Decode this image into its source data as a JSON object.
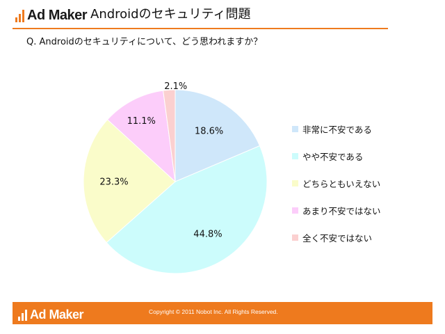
{
  "header": {
    "logo_text": "Ad Maker",
    "title": "Androidのセキュリティ問題"
  },
  "question": "Q. Androidのセキュリティについて、どう思われますか？",
  "colors": {
    "accent": "#ee7a1e",
    "logo_bar": "#ee7a1e",
    "slice_border": "#ffffff"
  },
  "chart_data": {
    "type": "pie",
    "title": "",
    "start_angle_deg": 0,
    "direction": "clockwise",
    "legend_position": "right",
    "slices": [
      {
        "label": "非常に不安である",
        "value": 18.6,
        "display": "18.6%",
        "color": "#cfe7fa"
      },
      {
        "label": "やや不安である",
        "value": 44.8,
        "display": "44.8%",
        "color": "#ccfcfc"
      },
      {
        "label": "どちらともいえない",
        "value": 23.3,
        "display": "23.3%",
        "color": "#fafcca"
      },
      {
        "label": "あまり不安ではない",
        "value": 11.1,
        "display": "11.1%",
        "color": "#fccdfa"
      },
      {
        "label": "全く不安ではない",
        "value": 2.1,
        "display": "2.1%",
        "color": "#fbd0d0"
      }
    ]
  },
  "footer": {
    "logo_text": "Ad Maker",
    "copyright": "Copyright © 2011 Nobot Inc. All Rights Reserved."
  }
}
